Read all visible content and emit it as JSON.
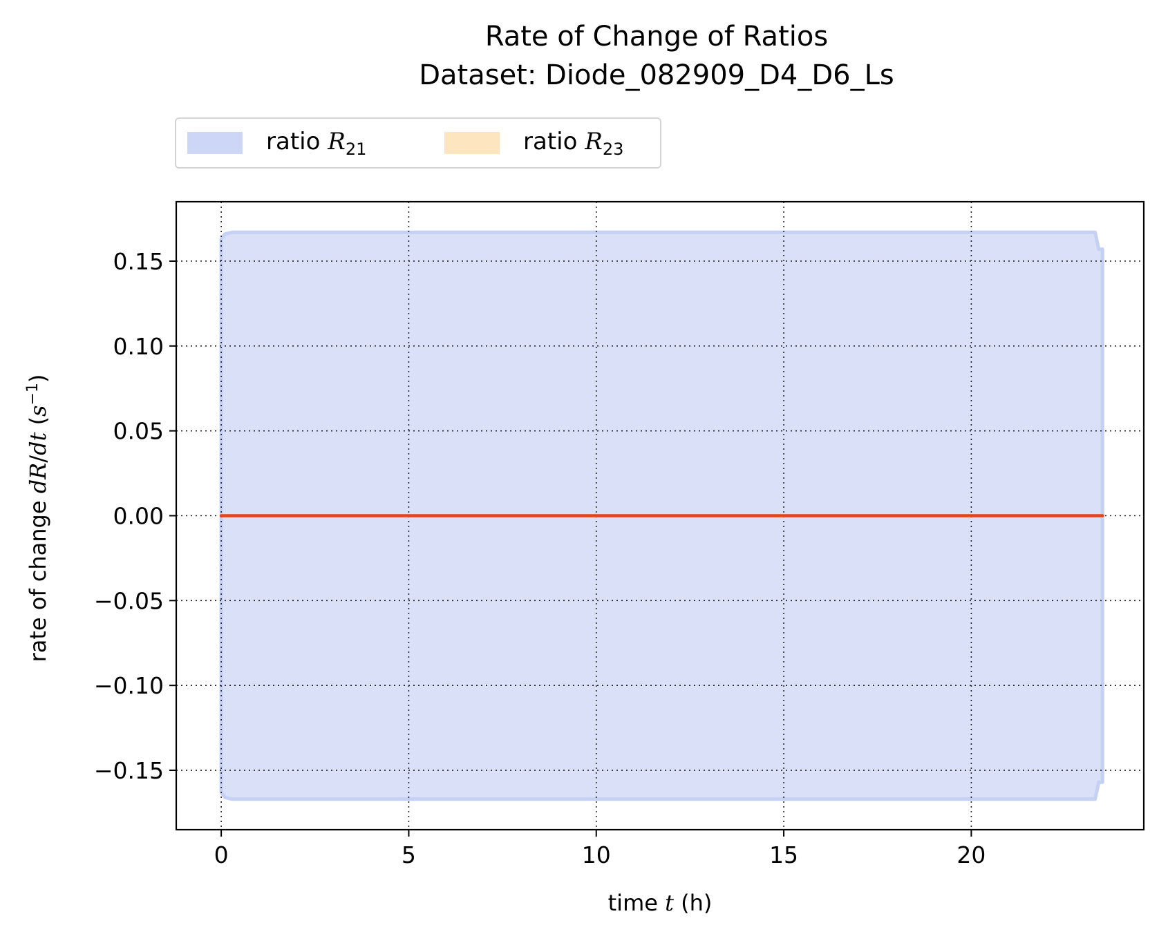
{
  "chart_data": {
    "type": "area",
    "title": "Rate of Change of Ratios",
    "subtitle": "Dataset: Diode_082909_D4_D6_Ls",
    "xlabel": "time t (h)",
    "ylabel": "rate of change dR/dt (s⁻¹)",
    "xlim": [
      -1.2,
      24.6
    ],
    "ylim": [
      -0.185,
      0.185
    ],
    "xticks": [
      "0",
      "5",
      "10",
      "15",
      "20"
    ],
    "yticks": [
      "0.15",
      "0.10",
      "0.05",
      "0.00",
      "−0.05",
      "−0.10",
      "−0.15"
    ],
    "grid": true,
    "legend_position": "top-left",
    "legend": [
      {
        "base": "ratio ",
        "symbol": "R",
        "sub": "21",
        "color": "#c5d0f5"
      },
      {
        "base": "ratio ",
        "symbol": "R",
        "sub": "23",
        "color": "#fde2b5"
      }
    ],
    "series": [
      {
        "name": "ratio R21",
        "kind": "band",
        "color": "#c5d0f5",
        "x": [
          0,
          0.1,
          0.3,
          0.6,
          2,
          5,
          8,
          10,
          15,
          20,
          23.0,
          23.3,
          23.4,
          23.5
        ],
        "upper": [
          0.163,
          0.166,
          0.167,
          0.167,
          0.167,
          0.167,
          0.167,
          0.167,
          0.167,
          0.167,
          0.167,
          0.167,
          0.157,
          0.157
        ],
        "lower": [
          -0.163,
          -0.166,
          -0.167,
          -0.167,
          -0.167,
          -0.167,
          -0.167,
          -0.167,
          -0.167,
          -0.167,
          -0.167,
          -0.167,
          -0.157,
          -0.157
        ]
      },
      {
        "name": "ratio R23",
        "kind": "line",
        "color": "#e8431a",
        "x": [
          0,
          5,
          10,
          15,
          20,
          23.5
        ],
        "y": [
          0,
          0,
          0,
          0,
          0,
          0
        ]
      }
    ]
  }
}
